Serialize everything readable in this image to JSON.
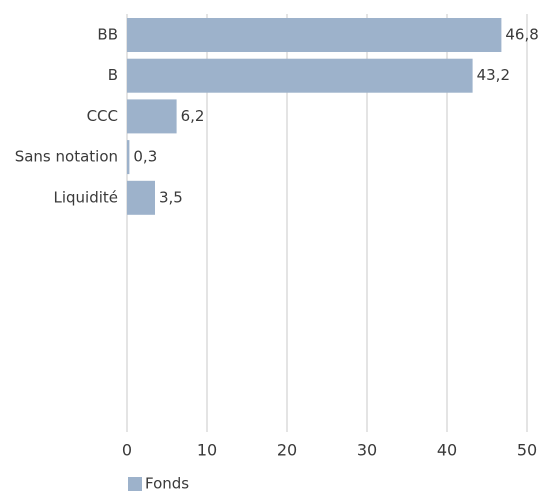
{
  "chart_data": {
    "type": "bar",
    "orientation": "horizontal",
    "categories": [
      "BB",
      "B",
      "CCC",
      "Sans notation",
      "Liquidité"
    ],
    "series": [
      {
        "name": "Fonds",
        "values": [
          46.8,
          43.2,
          6.2,
          0.3,
          3.5
        ],
        "data_labels": [
          "46,8",
          "43,2",
          "6,2",
          "0,3",
          "3,5"
        ]
      }
    ],
    "xlim": [
      0,
      50
    ],
    "x_ticks": [
      0,
      10,
      20,
      30,
      40,
      50
    ],
    "x_tick_labels": [
      "0",
      "10",
      "20",
      "30",
      "40",
      "50"
    ],
    "title": "",
    "xlabel": "",
    "ylabel": "",
    "grid": "vertical",
    "legend": "bottom-left",
    "colors": {
      "bar": "#9db2cb",
      "grid": "#c8c8c8",
      "text": "#3a3a3a"
    }
  }
}
